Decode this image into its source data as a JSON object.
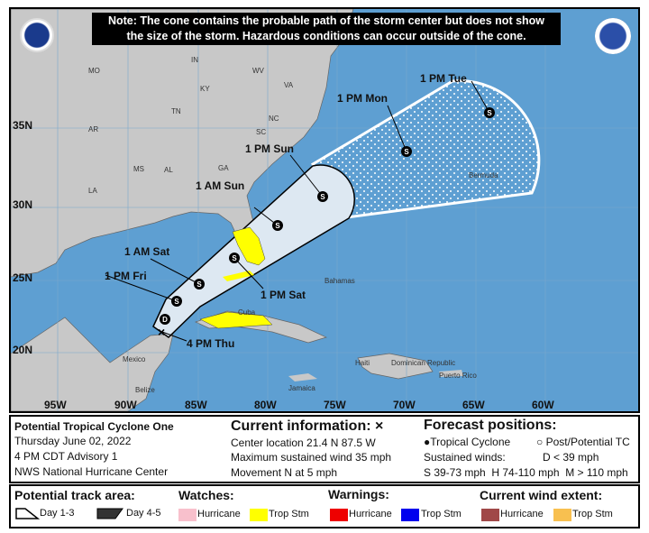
{
  "note": {
    "line1": "Note: The cone contains the probable path of the storm center but does not show",
    "line2": "the size of the storm. Hazardous conditions can occur outside of the cone."
  },
  "logos": {
    "left": "NOAA",
    "right": "National Weather Service"
  },
  "map": {
    "lat_labels": [
      "35N",
      "30N",
      "25N",
      "20N"
    ],
    "lon_labels": [
      "95W",
      "90W",
      "85W",
      "80W",
      "75W",
      "70W",
      "65W",
      "60W"
    ],
    "place_labels": [
      "MO",
      "KY",
      "WV",
      "VA",
      "TN",
      "NC",
      "AR",
      "MS",
      "AL",
      "GA",
      "SC",
      "LA",
      "IN",
      "Bahamas",
      "Cuba",
      "Mexico",
      "Belize",
      "Jamaica",
      "Haiti",
      "Dominican Republic",
      "Puerto Rico",
      "Bermuda"
    ],
    "forecast_points": [
      {
        "label": "4 PM Thu",
        "type": "current"
      },
      {
        "label": "",
        "type": "D"
      },
      {
        "label": "1 PM Fri",
        "type": "S"
      },
      {
        "label": "1 AM Sat",
        "type": "S"
      },
      {
        "label": "1 PM Sat",
        "type": "S"
      },
      {
        "label": "1 AM Sun",
        "type": "S"
      },
      {
        "label": "1 PM Sun",
        "type": "S"
      },
      {
        "label": "1 PM Mon",
        "type": "S"
      },
      {
        "label": "1 PM Tue",
        "type": "S"
      }
    ],
    "colors": {
      "ocean": "#5e9fd2",
      "land": "#c8c8c8",
      "cone_day13": "#dde8f2",
      "trop_storm_watch": "#ffff00"
    }
  },
  "info": {
    "storm_name": "Potential Tropical Cyclone One",
    "date": "Thursday June 02, 2022",
    "advisory": "4 PM CDT Advisory 1",
    "center": "NWS National Hurricane Center",
    "current_title": "Current information: ×",
    "location": "Center location 21.4 N 87.5 W",
    "wind": "Maximum sustained wind 35 mph",
    "movement": "Movement N at 5 mph",
    "forecast_title": "Forecast positions:",
    "tc": "Tropical Cyclone",
    "post": "Post/Potential TC",
    "sustained": "Sustained winds:",
    "d": "D < 39 mph",
    "shm": "S 39-73 mph  H 74-110 mph  M > 110 mph"
  },
  "legend": {
    "track_title": "Potential track area:",
    "day13": "Day 1-3",
    "day45": "Day 4-5",
    "watches_title": "Watches:",
    "warnings_title": "Warnings:",
    "wind_title": "Current wind extent:",
    "hurricane": "Hurricane",
    "trop_stm": "Trop Stm",
    "colors": {
      "hurricane_watch": "#f8c0cc",
      "ts_watch": "#ffff00",
      "hurricane_warning": "#ee0000",
      "ts_warning": "#0000ee",
      "hurricane_wind": "#a04848",
      "ts_wind": "#f8c050"
    }
  }
}
